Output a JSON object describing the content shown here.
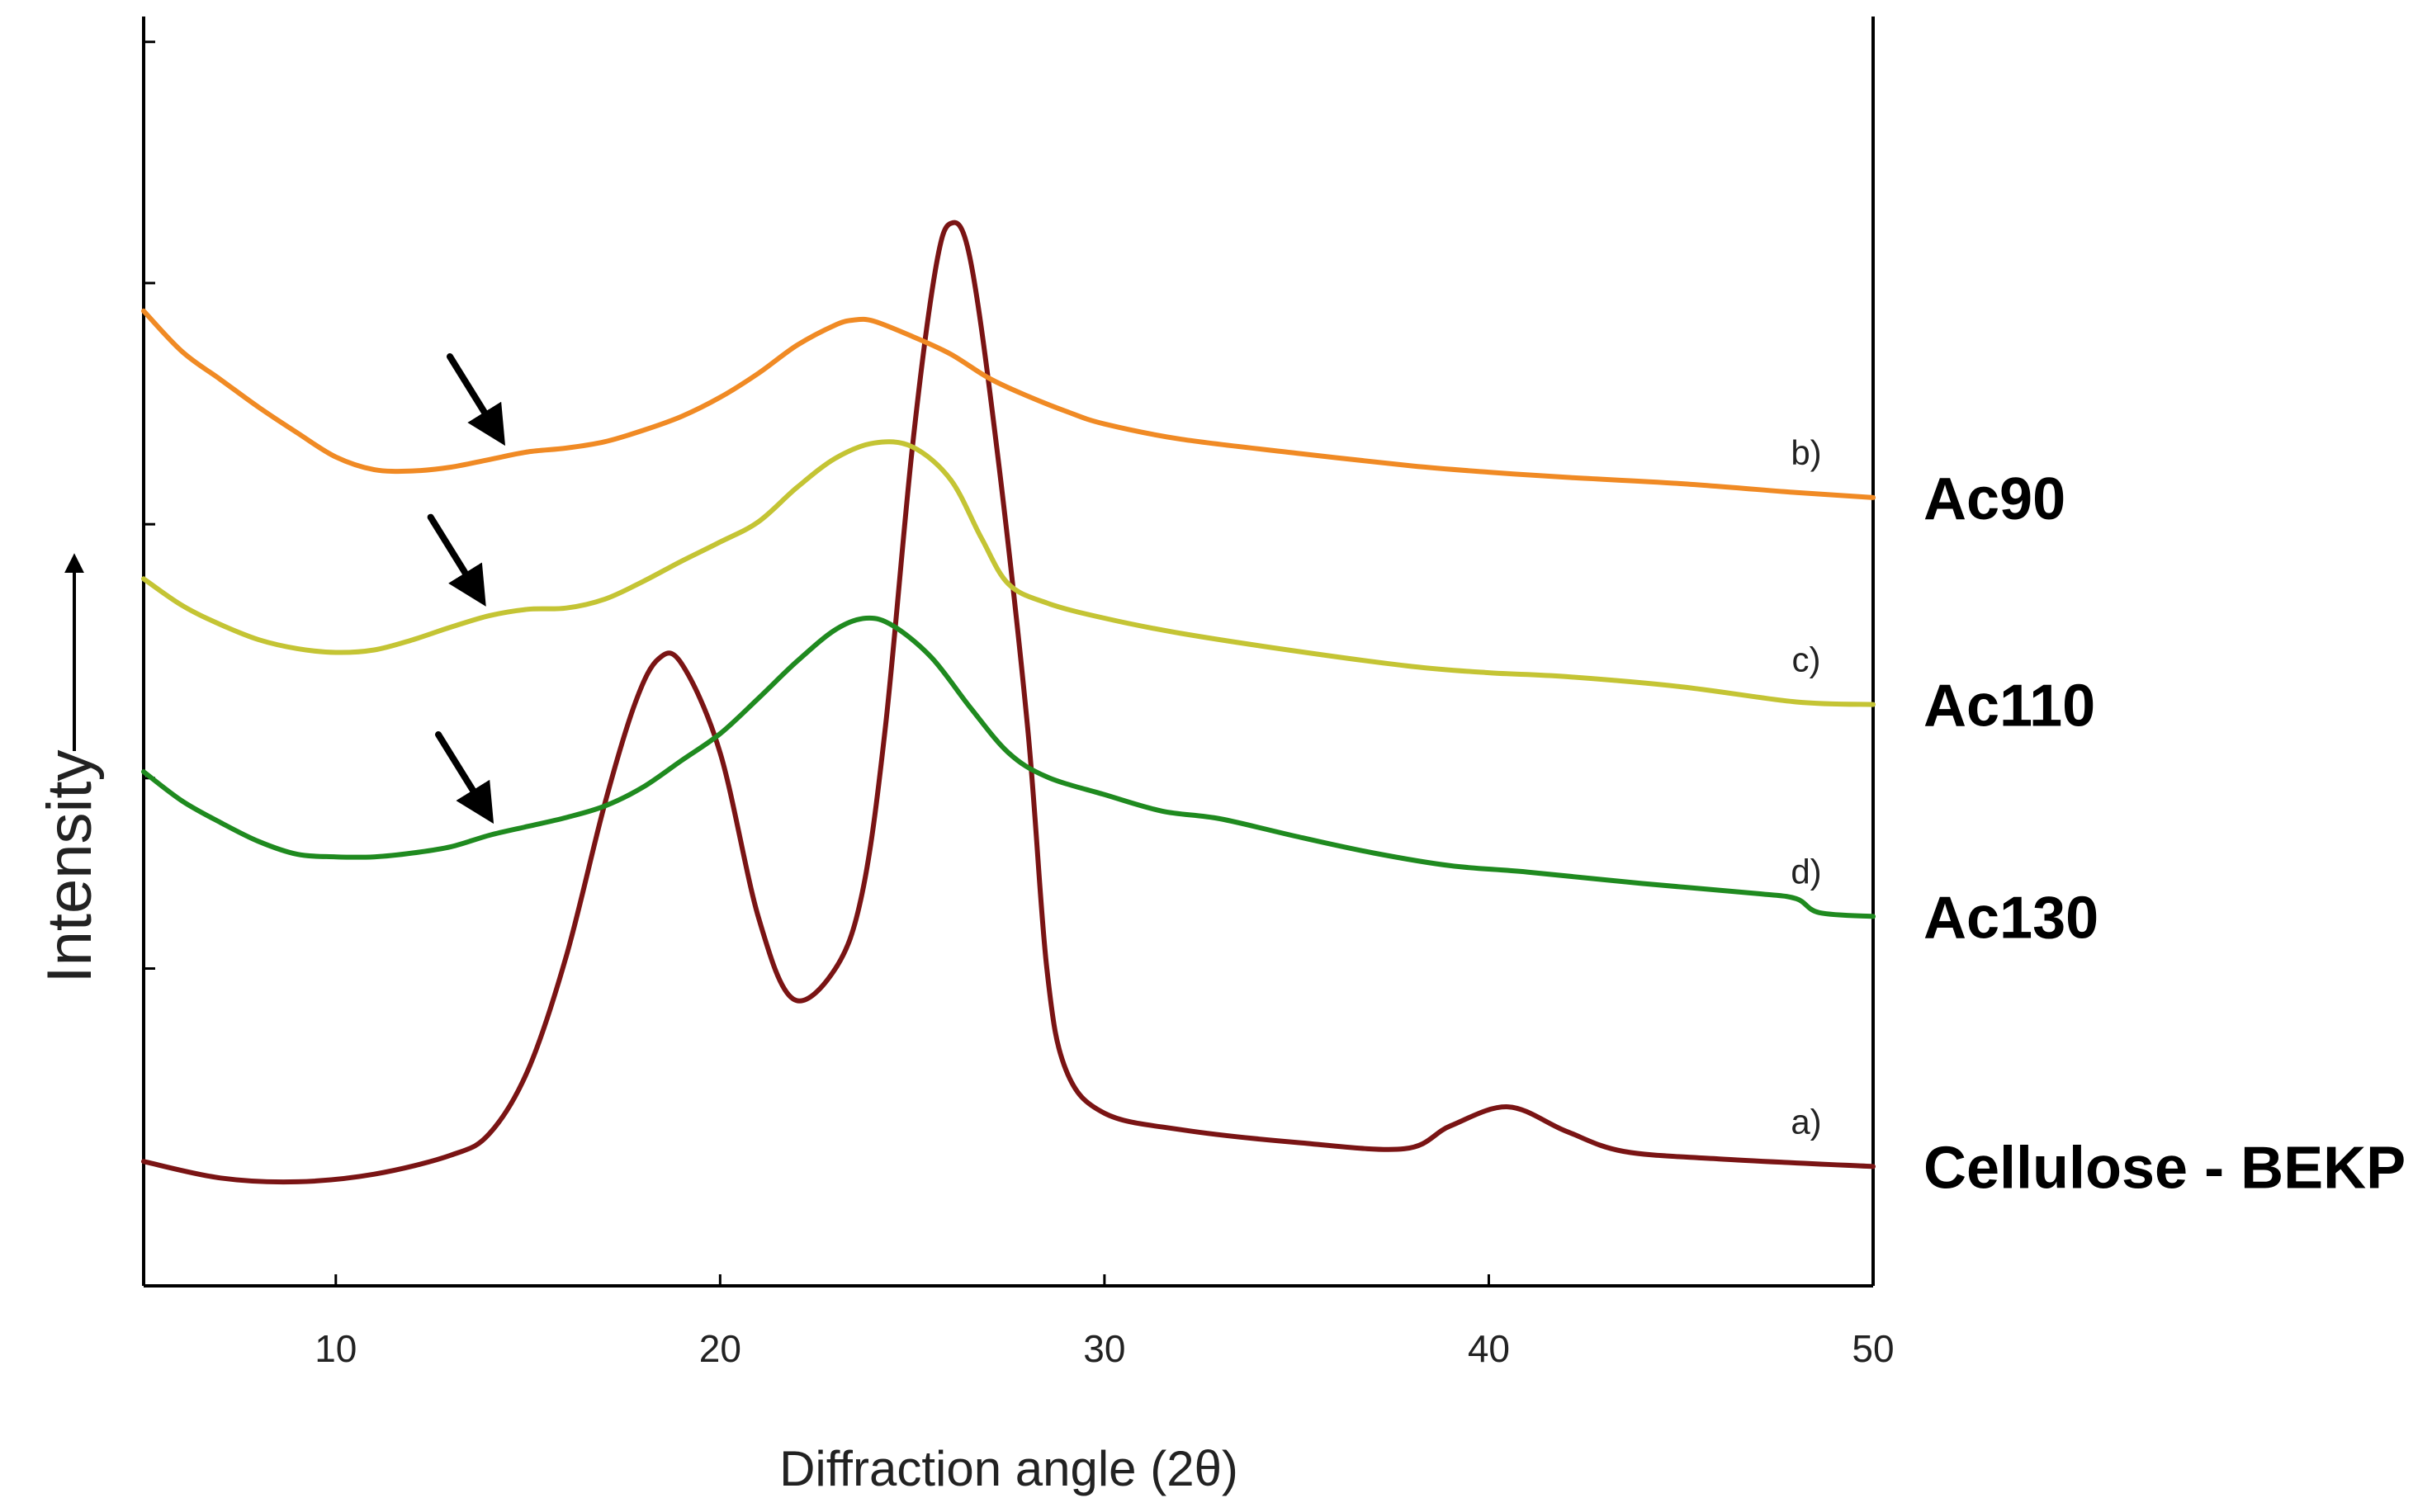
{
  "chart_data": {
    "type": "line",
    "xlabel": "Diffraction angle (2θ)",
    "ylabel": "Intensity",
    "ylabel_arrow": "arrow-up-icon",
    "xlim": [
      5,
      50
    ],
    "ylim": [
      0,
      100
    ],
    "xticks": [
      10,
      20,
      30,
      40,
      50
    ],
    "y_tick_marks": [
      25,
      40,
      60,
      79,
      98
    ],
    "grid": false,
    "y_values_note": "relative intensity, arbitrary units (0 = plot bottom, 100 = plot top)",
    "series": [
      {
        "id": "cellulose",
        "letter": "a)",
        "name": "Cellulose - BEKP",
        "color": "#7a1414",
        "points": [
          [
            5,
            9.8
          ],
          [
            7,
            8.5
          ],
          [
            9,
            8.2
          ],
          [
            11,
            8.8
          ],
          [
            13,
            10.3
          ],
          [
            14,
            12
          ],
          [
            15,
            17
          ],
          [
            16,
            26
          ],
          [
            17,
            38
          ],
          [
            17.8,
            46
          ],
          [
            18.4,
            49.4
          ],
          [
            19,
            49
          ],
          [
            20,
            42
          ],
          [
            21,
            29
          ],
          [
            21.9,
            22.6
          ],
          [
            23,
            25
          ],
          [
            23.7,
            31
          ],
          [
            24.3,
            44
          ],
          [
            25,
            66
          ],
          [
            25.6,
            80
          ],
          [
            26,
            83.7
          ],
          [
            26.5,
            81
          ],
          [
            27.2,
            66
          ],
          [
            28,
            44
          ],
          [
            28.5,
            25
          ],
          [
            29,
            17
          ],
          [
            30,
            13.6
          ],
          [
            32,
            12.3
          ],
          [
            35,
            11.3
          ],
          [
            37.8,
            10.8
          ],
          [
            39,
            12.6
          ],
          [
            40.5,
            14.1
          ],
          [
            42,
            12.2
          ],
          [
            43.5,
            10.6
          ],
          [
            46,
            10
          ],
          [
            50,
            9.4
          ]
        ]
      },
      {
        "id": "ac90",
        "letter": "b)",
        "name": "Ac90",
        "color": "#f08a24",
        "points": [
          [
            5,
            76.8
          ],
          [
            6,
            73.6
          ],
          [
            7,
            71.4
          ],
          [
            8,
            69.2
          ],
          [
            9,
            67.2
          ],
          [
            10,
            65.3
          ],
          [
            11,
            64.3
          ],
          [
            12,
            64.2
          ],
          [
            13,
            64.5
          ],
          [
            14,
            65.1
          ],
          [
            15,
            65.7
          ],
          [
            16,
            66
          ],
          [
            17,
            66.5
          ],
          [
            18,
            67.4
          ],
          [
            19,
            68.5
          ],
          [
            20,
            70
          ],
          [
            21,
            71.9
          ],
          [
            22,
            74.1
          ],
          [
            23,
            75.7
          ],
          [
            23.5,
            76.1
          ],
          [
            24,
            76
          ],
          [
            25,
            74.8
          ],
          [
            26,
            73.4
          ],
          [
            27,
            71.5
          ],
          [
            28,
            70.1
          ],
          [
            29,
            68.9
          ],
          [
            30,
            67.9
          ],
          [
            32,
            66.7
          ],
          [
            35,
            65.6
          ],
          [
            38,
            64.6
          ],
          [
            40,
            64.1
          ],
          [
            42,
            63.7
          ],
          [
            45,
            63.2
          ],
          [
            48,
            62.5
          ],
          [
            50,
            62.1
          ]
        ]
      },
      {
        "id": "ac110",
        "letter": "c)",
        "name": "Ac110",
        "color": "#c4c434",
        "points": [
          [
            5,
            55.7
          ],
          [
            6,
            53.6
          ],
          [
            7,
            52.1
          ],
          [
            8,
            50.9
          ],
          [
            9,
            50.2
          ],
          [
            10,
            49.9
          ],
          [
            11,
            50.1
          ],
          [
            12,
            50.9
          ],
          [
            13,
            51.9
          ],
          [
            14,
            52.8
          ],
          [
            15,
            53.3
          ],
          [
            16,
            53.4
          ],
          [
            17,
            54.1
          ],
          [
            18,
            55.5
          ],
          [
            19,
            57.1
          ],
          [
            20,
            58.6
          ],
          [
            21,
            60.2
          ],
          [
            22,
            62.9
          ],
          [
            23,
            65.2
          ],
          [
            24,
            66.4
          ],
          [
            25,
            66.1
          ],
          [
            26,
            63.5
          ],
          [
            26.8,
            58.9
          ],
          [
            27.5,
            55.3
          ],
          [
            28.5,
            53.8
          ],
          [
            30,
            52.6
          ],
          [
            32,
            51.4
          ],
          [
            35,
            50
          ],
          [
            38,
            48.8
          ],
          [
            40,
            48.3
          ],
          [
            42,
            48
          ],
          [
            45,
            47.2
          ],
          [
            48,
            46
          ],
          [
            50,
            45.8
          ]
        ]
      },
      {
        "id": "ac130",
        "letter": "d)",
        "name": "Ac130",
        "color": "#1f8a1f",
        "points": [
          [
            5,
            40.5
          ],
          [
            6,
            38.2
          ],
          [
            7,
            36.5
          ],
          [
            8,
            35
          ],
          [
            9,
            34
          ],
          [
            10,
            33.8
          ],
          [
            11,
            33.8
          ],
          [
            12,
            34.1
          ],
          [
            13,
            34.6
          ],
          [
            14,
            35.5
          ],
          [
            15,
            36.2
          ],
          [
            16,
            36.9
          ],
          [
            17,
            37.8
          ],
          [
            18,
            39.3
          ],
          [
            19,
            41.4
          ],
          [
            20,
            43.5
          ],
          [
            21,
            46.3
          ],
          [
            22,
            49.2
          ],
          [
            23,
            51.7
          ],
          [
            23.8,
            52.6
          ],
          [
            24.5,
            52
          ],
          [
            25.5,
            49.5
          ],
          [
            26.5,
            45.6
          ],
          [
            27.5,
            42
          ],
          [
            28.5,
            40.1
          ],
          [
            30,
            38.7
          ],
          [
            31.5,
            37.4
          ],
          [
            33,
            36.8
          ],
          [
            35,
            35.4
          ],
          [
            37,
            34.1
          ],
          [
            39,
            33.1
          ],
          [
            41,
            32.6
          ],
          [
            44,
            31.7
          ],
          [
            47,
            30.9
          ],
          [
            48,
            30.5
          ],
          [
            48.6,
            29.4
          ],
          [
            50,
            29.1
          ]
        ]
      }
    ],
    "arrows": [
      {
        "series": "ac90",
        "icon": "arrow-down-right-icon",
        "x": 14.3
      },
      {
        "series": "ac110",
        "icon": "arrow-down-right-icon",
        "x": 13.8
      },
      {
        "series": "ac130",
        "icon": "arrow-down-right-icon",
        "x": 14
      }
    ]
  }
}
